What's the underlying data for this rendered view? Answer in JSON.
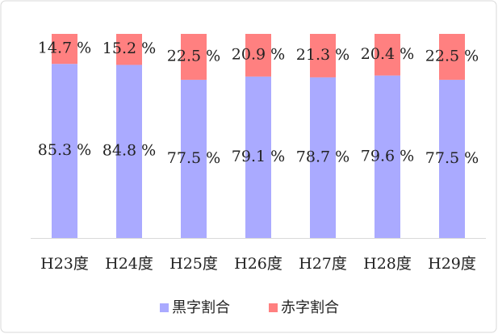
{
  "chart_data": {
    "type": "stacked_bar",
    "categories": [
      "H23度",
      "H24度",
      "H25度",
      "H26度",
      "H27度",
      "H28度",
      "H29度"
    ],
    "series": [
      {
        "name": "黒字割合",
        "color": "#aaaaff",
        "values": [
          85.3,
          84.8,
          77.5,
          79.1,
          78.7,
          79.6,
          77.5
        ],
        "value_labels": [
          "85.3 %",
          "84.8 %",
          "77.5 %",
          "79.1 %",
          "78.7 %",
          "79.6 %",
          "77.5 %"
        ]
      },
      {
        "name": "赤字割合",
        "color": "#ff8080",
        "values": [
          14.7,
          15.2,
          22.5,
          20.9,
          21.3,
          20.4,
          22.5
        ],
        "value_labels": [
          "14.7 %",
          "15.2 %",
          "22.5 %",
          "20.9 %",
          "21.3 %",
          "20.4 %",
          "22.5 %"
        ]
      }
    ],
    "legend": "bottom"
  }
}
